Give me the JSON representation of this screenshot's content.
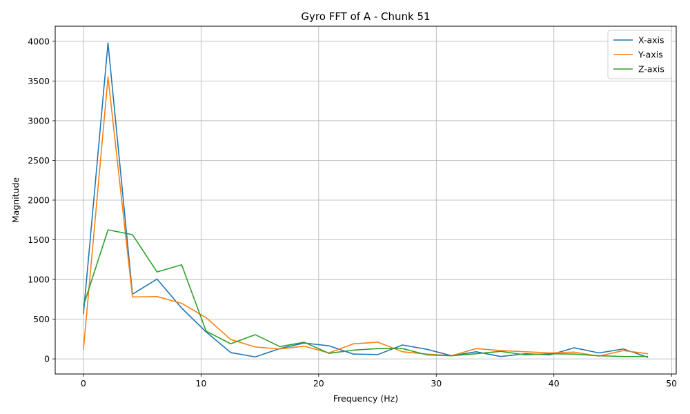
{
  "chart_data": {
    "type": "line",
    "title": "Gyro FFT of A - Chunk 51",
    "xlabel": "Frequency (Hz)",
    "ylabel": "Magnitude",
    "xlim": [
      -2.4,
      50.4
    ],
    "ylim": [
      -190,
      4190
    ],
    "xticks": [
      0,
      10,
      20,
      30,
      40,
      50
    ],
    "yticks": [
      0,
      500,
      1000,
      1500,
      2000,
      2500,
      3000,
      3500,
      4000
    ],
    "grid": true,
    "legend_position": "top-right",
    "x": [
      0,
      2.09,
      4.17,
      6.26,
      8.35,
      10.43,
      12.52,
      14.61,
      16.7,
      18.78,
      20.87,
      22.96,
      25.04,
      27.13,
      29.22,
      31.3,
      33.39,
      35.48,
      37.57,
      39.65,
      41.74,
      43.83,
      45.91,
      48.0
    ],
    "series": [
      {
        "name": "X-axis",
        "color": "#1f77b4",
        "values": [
          565,
          3980,
          815,
          1005,
          640,
          340,
          80,
          25,
          130,
          200,
          165,
          60,
          55,
          175,
          120,
          40,
          90,
          30,
          65,
          50,
          140,
          75,
          125,
          20
        ]
      },
      {
        "name": "Y-axis",
        "color": "#ff7f0e",
        "values": [
          115,
          3550,
          780,
          785,
          700,
          520,
          245,
          150,
          125,
          160,
          75,
          190,
          210,
          90,
          60,
          40,
          130,
          105,
          90,
          75,
          85,
          35,
          105,
          65
        ]
      },
      {
        "name": "Z-axis",
        "color": "#2ca02c",
        "values": [
          670,
          1625,
          1565,
          1095,
          1185,
          350,
          190,
          305,
          155,
          210,
          70,
          110,
          130,
          130,
          50,
          40,
          65,
          95,
          50,
          65,
          60,
          40,
          30,
          30
        ]
      }
    ]
  }
}
